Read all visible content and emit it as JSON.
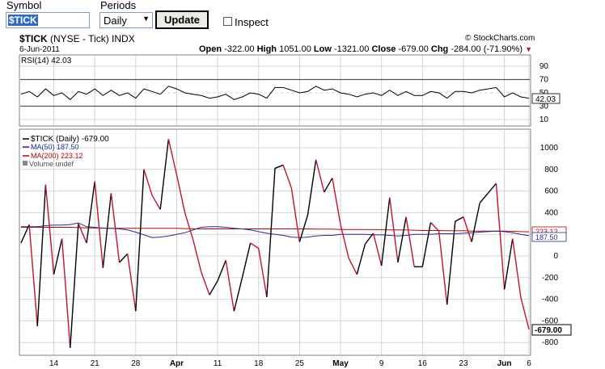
{
  "toolbar": {
    "symbol_label": "Symbol",
    "symbol_value": "$TICK",
    "periods_label": "Periods",
    "period_value": "Daily",
    "update_label": "Update",
    "inspect_label": "Inspect"
  },
  "header": {
    "title_symbol": "$TICK",
    "title_desc": "(NYSE - Tick)",
    "title_type": "INDX",
    "date": "6-Jun-2011",
    "copyright": "© StockCharts.com",
    "quote": {
      "open_label": "Open",
      "open": "-322.00",
      "high_label": "High",
      "high": "1051.00",
      "low_label": "Low",
      "low": "-1321.00",
      "close_label": "Close",
      "close": "-679.00",
      "chg_label": "Chg",
      "chg": "-284.00 (-71.90%)"
    }
  },
  "rsi": {
    "label": "RSI(14) 42.03",
    "value_badge": "42.03",
    "value": 42.03,
    "axis_ticks": [
      "90",
      "70",
      "50",
      "30",
      "10"
    ]
  },
  "legend": {
    "tick": "$TICK (Daily) -679.00",
    "ma50": "MA(50) 187.50",
    "ma200": "MA(200) 223.12",
    "volume": "Volume undef"
  },
  "axis": {
    "y_ticks": [
      "1000",
      "800",
      "600",
      "400",
      "200",
      "0",
      "-200",
      "-400",
      "-600",
      "-800"
    ],
    "x_ticks": [
      "14",
      "21",
      "28",
      "Apr",
      "11",
      "18",
      "25",
      "May",
      "9",
      "16",
      "23",
      "Jun",
      "6"
    ],
    "last_badge": "-679.00",
    "ma50_badge": "187.50",
    "ma200_badge": "223.12"
  },
  "colors": {
    "up": "#000000",
    "down": "#c8102e",
    "ma50": "#1f2f8f",
    "ma200": "#c00000",
    "grid": "#d4d4d4"
  },
  "chart_data": {
    "type": "line",
    "title": "$TICK (NYSE - Tick) INDX",
    "ylim": [
      -850,
      1100
    ],
    "x_ticks": [
      "14",
      "21",
      "28",
      "Apr",
      "11",
      "18",
      "25",
      "May",
      "9",
      "16",
      "23",
      "Jun",
      "6"
    ],
    "series": [
      {
        "name": "$TICK (Daily)",
        "values": [
          120,
          290,
          -650,
          660,
          -170,
          160,
          -850,
          300,
          120,
          690,
          -110,
          580,
          -60,
          20,
          -510,
          800,
          560,
          430,
          1080,
          750,
          400,
          150,
          -150,
          -360,
          -230,
          -40,
          -510,
          -200,
          120,
          70,
          -380,
          810,
          840,
          630,
          130,
          380,
          890,
          590,
          720,
          290,
          -20,
          -170,
          110,
          210,
          -90,
          540,
          -60,
          360,
          -100,
          -100,
          310,
          230,
          -450,
          320,
          360,
          130,
          490,
          580,
          670,
          -310,
          160,
          -380,
          -679
        ]
      },
      {
        "name": "MA(50)",
        "values": [
          270,
          270,
          270,
          280,
          285,
          285,
          290,
          305,
          270,
          265,
          255,
          255,
          250,
          240,
          220,
          195,
          170,
          175,
          185,
          200,
          215,
          240,
          265,
          270,
          270,
          265,
          255,
          250,
          240,
          225,
          210,
          200,
          190,
          175,
          170,
          175,
          185,
          190,
          190,
          200,
          200,
          200,
          200,
          195,
          195,
          190,
          185,
          190,
          200,
          200,
          200,
          205,
          205,
          205,
          210,
          215,
          220,
          225,
          230,
          225,
          215,
          200,
          187.5
        ]
      },
      {
        "name": "MA(200)",
        "values": [
          265,
          265,
          265,
          265,
          265,
          265,
          265,
          262,
          260,
          258,
          258,
          256,
          255,
          255,
          255,
          255,
          255,
          255,
          255,
          255,
          253,
          250,
          250,
          250,
          250,
          250,
          250,
          250,
          250,
          250,
          250,
          250,
          250,
          250,
          250,
          250,
          248,
          248,
          248,
          245,
          245,
          245,
          245,
          243,
          243,
          240,
          240,
          240,
          238,
          235,
          235,
          235,
          233,
          233,
          233,
          230,
          230,
          230,
          230,
          230,
          228,
          225,
          223.12
        ]
      },
      {
        "name": "RSI(14)",
        "values": [
          48,
          52,
          44,
          56,
          46,
          50,
          40,
          52,
          48,
          56,
          46,
          54,
          46,
          50,
          42,
          56,
          52,
          48,
          60,
          56,
          50,
          48,
          46,
          42,
          44,
          48,
          40,
          44,
          50,
          48,
          42,
          58,
          58,
          54,
          50,
          52,
          60,
          54,
          56,
          50,
          48,
          44,
          48,
          50,
          46,
          54,
          46,
          52,
          46,
          46,
          52,
          50,
          42,
          52,
          52,
          50,
          54,
          56,
          58,
          44,
          50,
          44,
          42.03
        ]
      }
    ]
  }
}
